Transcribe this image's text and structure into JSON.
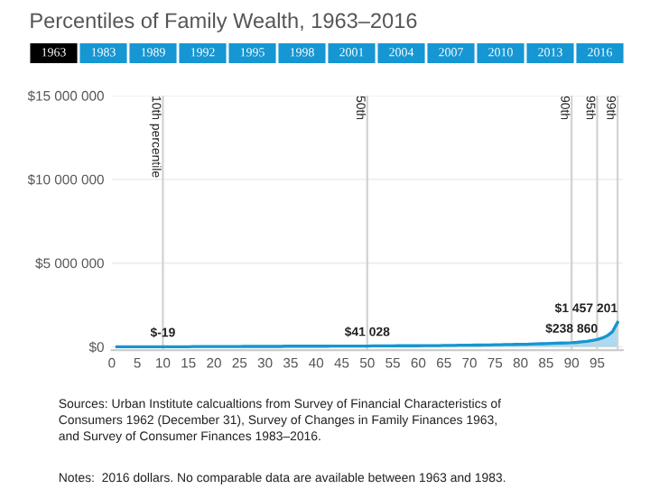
{
  "chart_data": {
    "type": "area",
    "title": "Percentiles of Family Wealth, 1963–2016",
    "annotations": [
      "1963",
      "1983",
      "1989",
      "1992",
      "1995",
      "1998",
      "2001",
      "2004",
      "2007",
      "2010",
      "2013",
      "2016",
      "Sources: Urban Institute calcualtions from Survey of Financial Characteristics of\nConsumers 1962 (December 31), Survey of Changes in Family Finances 1963,\nand Survey of Consumer Finances 1983–2016.",
      "Notes:  2016 dollars. No comparable data are available between 1963 and 1983."
    ],
    "x": [
      1,
      2,
      3,
      4,
      5,
      6,
      7,
      8,
      9,
      10,
      11,
      12,
      13,
      14,
      15,
      16,
      17,
      18,
      19,
      20,
      21,
      22,
      23,
      24,
      25,
      26,
      27,
      28,
      29,
      30,
      31,
      32,
      33,
      34,
      35,
      36,
      37,
      38,
      39,
      40,
      41,
      42,
      43,
      44,
      45,
      46,
      47,
      48,
      49,
      50,
      51,
      52,
      53,
      54,
      55,
      56,
      57,
      58,
      59,
      60,
      61,
      62,
      63,
      64,
      65,
      66,
      67,
      68,
      69,
      70,
      71,
      72,
      73,
      74,
      75,
      76,
      77,
      78,
      79,
      80,
      81,
      82,
      83,
      84,
      85,
      86,
      87,
      88,
      89,
      90,
      91,
      92,
      93,
      94,
      95,
      96,
      97,
      98,
      99
    ],
    "values": [
      0,
      0,
      0,
      0,
      0,
      0,
      0,
      0,
      0,
      -19,
      0,
      0,
      0,
      0,
      0,
      10000,
      10000,
      10000,
      10000,
      10000,
      10000,
      10000,
      10000,
      10000,
      10000,
      20000,
      20000,
      20000,
      20000,
      20000,
      20000,
      20000,
      20000,
      30000,
      30000,
      30000,
      30000,
      30000,
      30000,
      30000,
      30000,
      30000,
      40000,
      40000,
      40000,
      40000,
      40000,
      40000,
      40000,
      41028,
      50000,
      50000,
      50000,
      50000,
      50000,
      60000,
      60000,
      60000,
      60000,
      60000,
      70000,
      70000,
      70000,
      70000,
      80000,
      80000,
      80000,
      90000,
      90000,
      90000,
      100000,
      100000,
      110000,
      110000,
      120000,
      120000,
      130000,
      130000,
      140000,
      150000,
      150000,
      160000,
      170000,
      180000,
      190000,
      200000,
      210000,
      220000,
      230000,
      238860,
      260000,
      290000,
      320000,
      370000,
      430000,
      520000,
      660000,
      900000,
      1457201
    ],
    "value_labels": [
      null,
      null,
      null,
      null,
      null,
      null,
      null,
      null,
      null,
      "$-19",
      null,
      null,
      null,
      null,
      null,
      null,
      null,
      null,
      null,
      null,
      null,
      null,
      null,
      null,
      null,
      null,
      null,
      null,
      null,
      null,
      null,
      null,
      null,
      null,
      null,
      null,
      null,
      null,
      null,
      null,
      null,
      null,
      null,
      null,
      null,
      null,
      null,
      null,
      null,
      "$41 028",
      null,
      null,
      null,
      null,
      null,
      null,
      null,
      null,
      null,
      null,
      null,
      null,
      null,
      null,
      null,
      null,
      null,
      null,
      null,
      null,
      null,
      null,
      null,
      null,
      null,
      null,
      null,
      null,
      null,
      null,
      null,
      null,
      null,
      null,
      null,
      null,
      null,
      null,
      null,
      "$238 860",
      null,
      null,
      null,
      null,
      null,
      null,
      null,
      null,
      "$1 457 201"
    ],
    "color": "#1696d2",
    "xlim": [
      0,
      100
    ],
    "xticks": [
      0,
      5,
      10,
      15,
      20,
      25,
      30,
      35,
      40,
      45,
      50,
      55,
      60,
      65,
      70,
      75,
      80,
      85,
      90,
      95
    ],
    "ylim": [
      -200000,
      15000000
    ],
    "yticks": [
      {
        "value": 0,
        "label": "$0"
      },
      {
        "value": 5000000,
        "label": "$5 000 000"
      },
      {
        "value": 10000000,
        "label": "$10 000 000"
      },
      {
        "value": 15000000,
        "label": "$15 000 000"
      }
    ],
    "ref_lines": [
      {
        "axis": "x",
        "value": 10,
        "label": "10th percentile",
        "color": "#d2d2d2"
      },
      {
        "axis": "x",
        "value": 50,
        "label": "50th",
        "color": "#d2d2d2"
      },
      {
        "axis": "x",
        "value": 90,
        "label": "90th",
        "color": "#d2d2d2"
      },
      {
        "axis": "x",
        "value": 95,
        "label": "95th",
        "color": "#d2d2d2"
      },
      {
        "axis": "x",
        "value": 99,
        "label": "99th",
        "color": "#d2d2d2"
      }
    ],
    "grid": "y",
    "legend": false
  }
}
